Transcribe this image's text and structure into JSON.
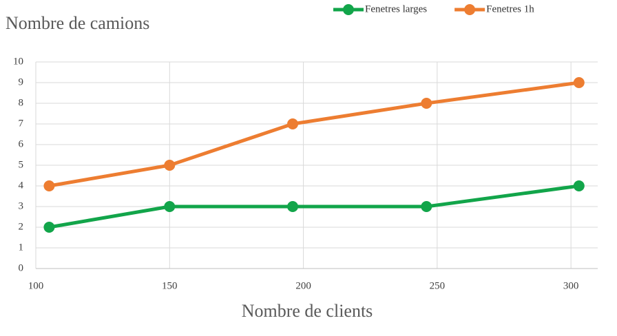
{
  "chart_data": {
    "type": "line",
    "y_label": "Nombre de camions",
    "x_label": "Nombre de clients",
    "series": [
      {
        "name": "Fenetres larges",
        "color": "#12a54a",
        "x": [
          105,
          150,
          196,
          246,
          303
        ],
        "values": [
          2,
          3,
          3,
          3,
          4
        ]
      },
      {
        "name": "Fenetres 1h",
        "color": "#ed7d31",
        "x": [
          105,
          150,
          196,
          246,
          303
        ],
        "values": [
          4,
          5,
          7,
          8,
          9
        ]
      }
    ],
    "xlim": [
      100,
      310
    ],
    "xticks": [
      100,
      150,
      200,
      250,
      300
    ],
    "ylim": [
      0,
      10
    ],
    "yticks": [
      0,
      1,
      2,
      3,
      4,
      5,
      6,
      7,
      8,
      9,
      10
    ],
    "grid": true,
    "legend": "top-right"
  }
}
